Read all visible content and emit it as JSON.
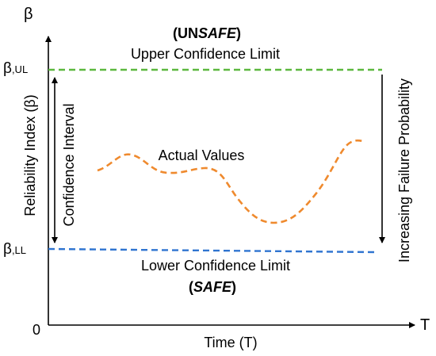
{
  "axes": {
    "y_symbol": "β",
    "x_symbol": "T",
    "origin": "0",
    "y_label": "Reliability Index (β)",
    "x_label": "Time (T)"
  },
  "limits": {
    "upper_tick_base": "β",
    "upper_tick_sub": ",UL",
    "lower_tick_base": "β",
    "lower_tick_sub": ",LL",
    "upper_label": "Upper Confidence Limit",
    "lower_label": "Lower Confidence Limit",
    "upper_color": "#5cb83f",
    "lower_color": "#2f74d0"
  },
  "zones": {
    "unsafe_prefix": "UN",
    "unsafe_emph": "SAFE",
    "safe_emph": "SAFE"
  },
  "annotations": {
    "confidence_interval": "Confidence Interval",
    "actual_values": "Actual Values",
    "increasing_failure": "Increasing Failure Probability",
    "actual_color": "#ef8a2e"
  }
}
